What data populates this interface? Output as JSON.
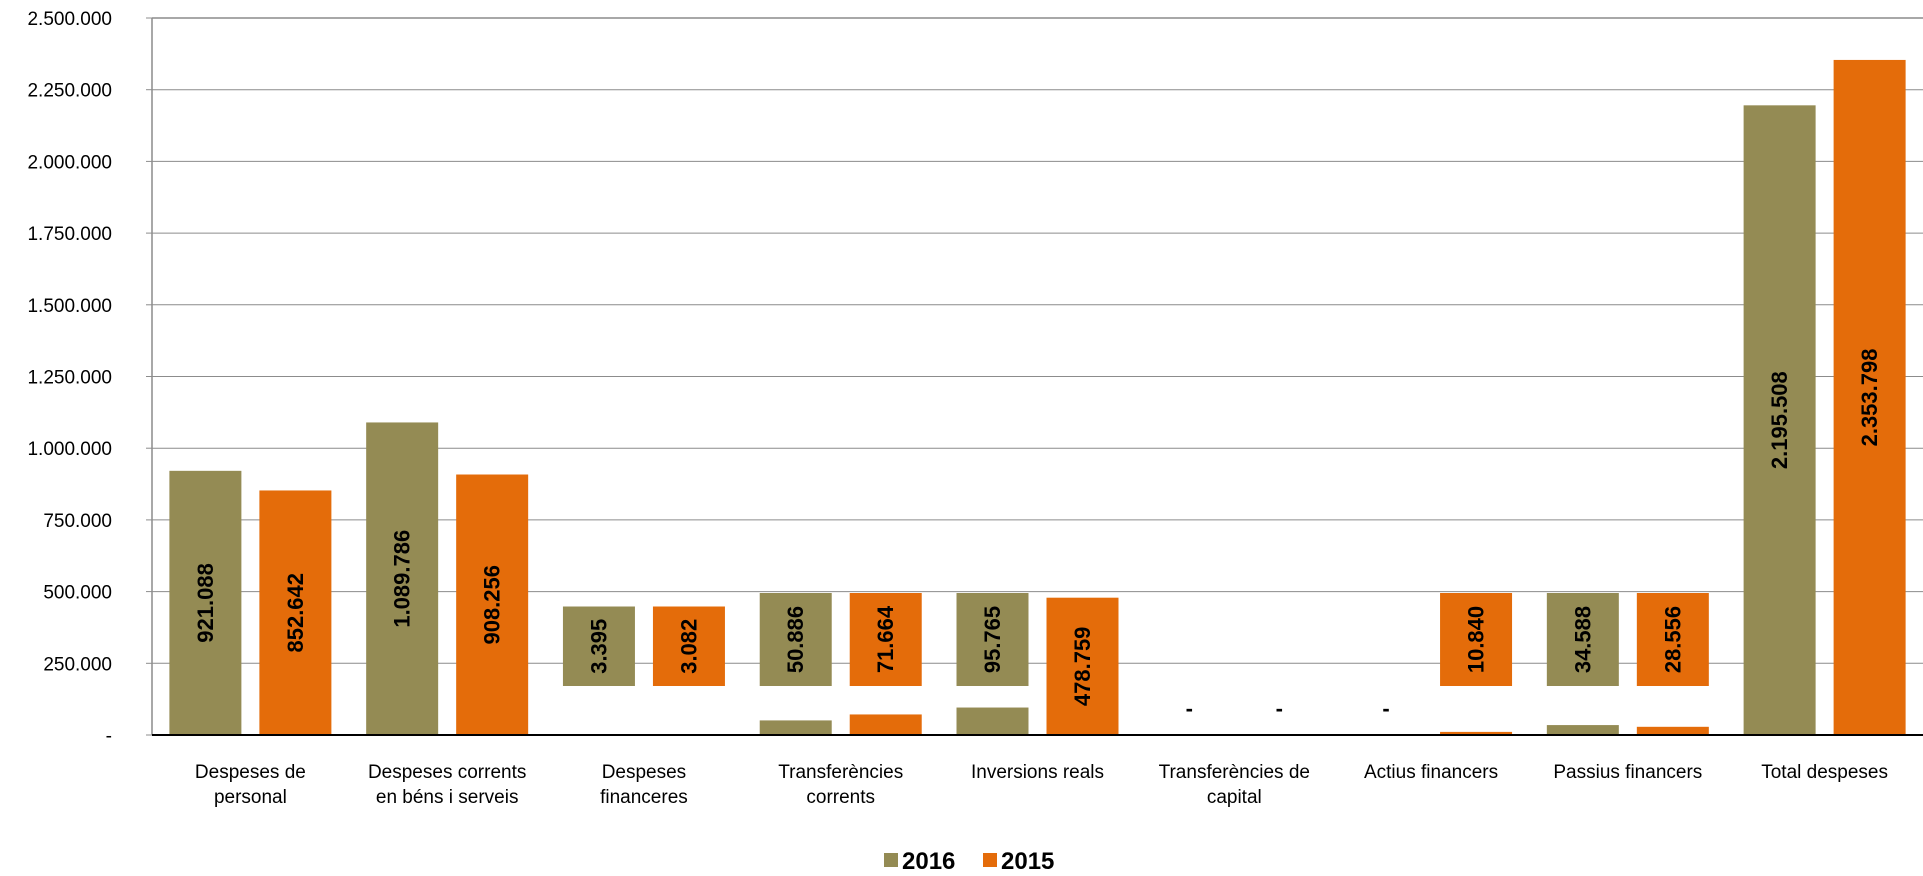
{
  "chart_data": {
    "type": "bar",
    "title": "",
    "xlabel": "",
    "ylabel": "",
    "ylim": [
      0,
      2500000
    ],
    "yticks": [
      0,
      250000,
      500000,
      750000,
      1000000,
      1250000,
      1500000,
      1750000,
      2000000,
      2250000,
      2500000
    ],
    "ytick_labels": [
      "-",
      "250.000",
      "500.000",
      "750.000",
      "1.000.000",
      "1.250.000",
      "1.500.000",
      "1.750.000",
      "2.000.000",
      "2.250.000",
      "2.500.000"
    ],
    "grid": true,
    "legend_position": "bottom",
    "categories": [
      [
        "Despeses de",
        "personal"
      ],
      [
        "Despeses corrents",
        "en béns i serveis"
      ],
      [
        "Despeses",
        "financeres"
      ],
      [
        "Transferències",
        "corrents"
      ],
      [
        "Inversions reals"
      ],
      [
        "Transferències de",
        "capital"
      ],
      [
        "Actius financers"
      ],
      [
        "Passius financers"
      ],
      [
        "Total despeses"
      ]
    ],
    "series": [
      {
        "name": "2016",
        "color": "#948b54",
        "values": [
          921088,
          1089786,
          3395,
          50886,
          95765,
          0,
          0,
          34588,
          2195508
        ],
        "labels": [
          "921.088",
          "1.089.786",
          "3.395",
          "50.886",
          "95.765",
          "-",
          "-",
          "34.588",
          "2.195.508"
        ]
      },
      {
        "name": "2015",
        "color": "#e46c0a",
        "values": [
          852642,
          908256,
          3082,
          71664,
          478759,
          0,
          10840,
          28556,
          2353798
        ],
        "labels": [
          "852.642",
          "908.256",
          "3.082",
          "71.664",
          "478.759",
          "-",
          "10.840",
          "28.556",
          "2.353.798"
        ]
      }
    ]
  }
}
